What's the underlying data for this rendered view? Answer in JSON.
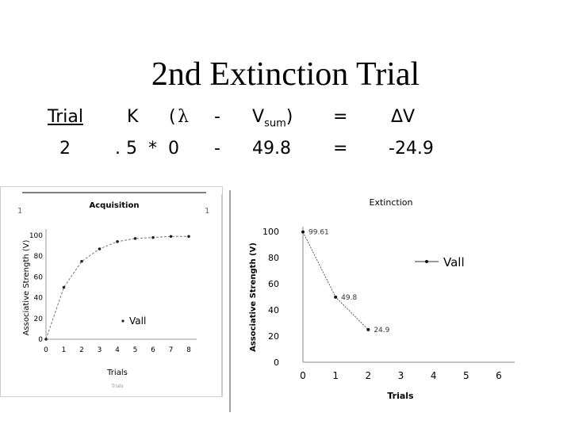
{
  "slide": {
    "title": "2nd Extinction Trial"
  },
  "equation": {
    "header": {
      "trial": "Trial",
      "k": "K",
      "open_paren": "(",
      "lambda": "λ",
      "minus": "-",
      "v": "V",
      "v_sub": "sum",
      "close_paren": ")",
      "equals": "=",
      "delta_v": "ΔV"
    },
    "values": {
      "trial": "2",
      "k_times_lambda": ". 5  *  0",
      "minus": "-",
      "vsum": "49.8",
      "equals": "=",
      "delta_v": "-24.9"
    }
  },
  "chart_data": [
    {
      "type": "line",
      "title": "Acquisition",
      "xlabel": "Trials",
      "ylabel": "Associative Strength (V)",
      "x": [
        0,
        1,
        2,
        3,
        4,
        5,
        6,
        7,
        8
      ],
      "series": [
        {
          "name": "Vall",
          "values": [
            0,
            50,
            75,
            87,
            94,
            97,
            98,
            99,
            99
          ]
        }
      ],
      "xticks": [
        "0",
        "1",
        "2",
        "3",
        "4",
        "5",
        "6",
        "7",
        "8"
      ],
      "yticks": [
        "0",
        "20",
        "40",
        "60",
        "80",
        "100"
      ],
      "ylim": [
        0,
        100
      ],
      "legend": "bottom-center",
      "corner_marks": [
        "1",
        "1"
      ],
      "footer": "Trials"
    },
    {
      "type": "line",
      "title": "Extinction",
      "xlabel": "Trials",
      "ylabel": "Associative Strength (V)",
      "x": [
        0,
        1,
        2
      ],
      "series": [
        {
          "name": "Vall",
          "values": [
            99.61,
            49.8,
            24.9
          ]
        }
      ],
      "data_labels": [
        "99.61",
        "49.8",
        "24.9"
      ],
      "xticks": [
        "0",
        "1",
        "2",
        "3",
        "4",
        "5",
        "6"
      ],
      "yticks": [
        "0",
        "20",
        "40",
        "60",
        "80",
        "100"
      ],
      "xlim": [
        0,
        6
      ],
      "ylim": [
        0,
        100
      ],
      "legend": "right"
    }
  ]
}
